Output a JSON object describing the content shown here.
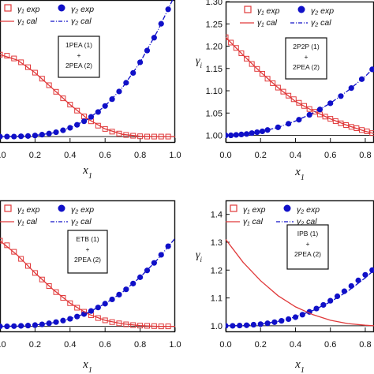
{
  "colors": {
    "gamma1": "#e0393a",
    "gamma2": "#1010c8",
    "axis": "#111111"
  },
  "chart_data": [
    {
      "type": "scatter",
      "panel": "top-left",
      "xlabel": "x1",
      "ylabel": "",
      "xlim": [
        0.0,
        1.0
      ],
      "ylim": [
        0.98,
        1.5
      ],
      "xticks": [
        "0.0",
        "0.2",
        "0.4",
        "0.6",
        "0.8",
        "1.0"
      ],
      "yticks": [],
      "system_label": [
        "1PEA (1)",
        "+",
        "2PEA (2)"
      ],
      "legend": {
        "exp1": "γ₁ exp",
        "exp2": "γ₂ exp",
        "cal1": "γ₁ cal",
        "cal2": "γ₂ cal"
      },
      "series": [
        {
          "name": "γ₁ exp",
          "x": [
            0.0,
            0.04,
            0.08,
            0.12,
            0.16,
            0.2,
            0.24,
            0.28,
            0.32,
            0.36,
            0.4,
            0.44,
            0.48,
            0.52,
            0.56,
            0.6,
            0.64,
            0.68,
            0.72,
            0.76,
            0.8,
            0.84,
            0.88,
            0.92,
            0.96
          ],
          "y": [
            1.3,
            1.296,
            1.286,
            1.272,
            1.254,
            1.234,
            1.212,
            1.188,
            1.164,
            1.14,
            1.117,
            1.095,
            1.074,
            1.056,
            1.04,
            1.028,
            1.018,
            1.011,
            1.006,
            1.003,
            1.001,
            1.0,
            1.0,
            1.0,
            1.0
          ]
        },
        {
          "name": "γ₂ exp",
          "x": [
            0.0,
            0.04,
            0.08,
            0.12,
            0.16,
            0.2,
            0.24,
            0.28,
            0.32,
            0.36,
            0.4,
            0.44,
            0.48,
            0.52,
            0.56,
            0.6,
            0.64,
            0.68,
            0.72,
            0.76,
            0.8,
            0.84,
            0.88,
            0.92,
            0.96
          ],
          "y": [
            1.0,
            1.0,
            1.0,
            1.001,
            1.002,
            1.004,
            1.007,
            1.011,
            1.016,
            1.023,
            1.032,
            1.043,
            1.056,
            1.072,
            1.09,
            1.112,
            1.137,
            1.165,
            1.197,
            1.233,
            1.272,
            1.315,
            1.362,
            1.413,
            1.466
          ]
        },
        {
          "name": "γ₁ cal",
          "x": [
            0.0,
            0.1,
            0.2,
            0.3,
            0.4,
            0.5,
            0.6,
            0.7,
            0.8,
            0.9,
            1.0
          ],
          "y": [
            1.3,
            1.28,
            1.234,
            1.176,
            1.117,
            1.065,
            1.028,
            1.008,
            1.001,
            1.0,
            1.0
          ]
        },
        {
          "name": "γ₂ cal",
          "x": [
            0.0,
            0.1,
            0.2,
            0.3,
            0.4,
            0.5,
            0.6,
            0.7,
            0.8,
            0.9,
            1.0
          ],
          "y": [
            1.0,
            1.001,
            1.004,
            1.013,
            1.032,
            1.063,
            1.112,
            1.18,
            1.272,
            1.387,
            1.52
          ]
        }
      ]
    },
    {
      "type": "scatter",
      "panel": "top-right",
      "xlabel": "x1",
      "ylabel": "γ",
      "xlim": [
        0.0,
        0.85
      ],
      "ylim": [
        0.985,
        1.3
      ],
      "xticks": [
        "0.0",
        "0.2",
        "0.4",
        "0.6",
        "0.8"
      ],
      "yticks": [
        "1.00",
        "1.05",
        "1.10",
        "1.15",
        "1.20",
        "1.25",
        "1.30"
      ],
      "system_label": [
        "2P2P (1)",
        "+",
        "2PEA (2)"
      ],
      "legend": {
        "exp1": "γ₁ exp",
        "exp2": "γ₂ exp",
        "cal1": "γ₁ cal",
        "cal2": "γ₂ cal"
      },
      "series": [
        {
          "name": "γ₁ exp",
          "x": [
            0.0,
            0.03,
            0.06,
            0.09,
            0.12,
            0.15,
            0.18,
            0.21,
            0.24,
            0.27,
            0.3,
            0.33,
            0.36,
            0.39,
            0.42,
            0.45,
            0.48,
            0.51,
            0.54,
            0.57,
            0.6,
            0.63,
            0.66,
            0.69,
            0.72,
            0.75,
            0.78,
            0.81,
            0.84
          ],
          "y": [
            1.22,
            1.208,
            1.196,
            1.184,
            1.172,
            1.16,
            1.149,
            1.138,
            1.127,
            1.117,
            1.107,
            1.098,
            1.089,
            1.081,
            1.073,
            1.066,
            1.059,
            1.053,
            1.047,
            1.042,
            1.037,
            1.032,
            1.027,
            1.023,
            1.019,
            1.016,
            1.012,
            1.009,
            1.005
          ]
        },
        {
          "name": "γ₂ exp",
          "x": [
            0.0,
            0.03,
            0.06,
            0.09,
            0.12,
            0.15,
            0.18,
            0.21,
            0.24,
            0.3,
            0.36,
            0.42,
            0.48,
            0.54,
            0.6,
            0.66,
            0.72,
            0.78,
            0.84
          ],
          "y": [
            1.0,
            1.0,
            1.001,
            1.002,
            1.003,
            1.005,
            1.007,
            1.009,
            1.012,
            1.018,
            1.026,
            1.035,
            1.046,
            1.058,
            1.072,
            1.088,
            1.106,
            1.126,
            1.148
          ]
        },
        {
          "name": "γ₁ cal",
          "x": [
            0.0,
            0.1,
            0.2,
            0.3,
            0.4,
            0.5,
            0.6,
            0.7,
            0.8,
            0.85
          ],
          "y": [
            1.22,
            1.18,
            1.142,
            1.107,
            1.076,
            1.055,
            1.037,
            1.022,
            1.009,
            1.004
          ]
        },
        {
          "name": "γ₂ cal",
          "x": [
            0.0,
            0.1,
            0.2,
            0.3,
            0.4,
            0.5,
            0.6,
            0.7,
            0.8,
            0.85
          ],
          "y": [
            1.0,
            1.002,
            1.008,
            1.018,
            1.032,
            1.05,
            1.072,
            1.1,
            1.132,
            1.152
          ]
        }
      ]
    },
    {
      "type": "scatter",
      "panel": "bottom-left",
      "xlabel": "x1",
      "ylabel": "",
      "xlim": [
        0.0,
        1.0
      ],
      "ylim": [
        0.98,
        1.5
      ],
      "xticks": [
        "0.0",
        "0.2",
        "0.4",
        "0.6",
        "0.8",
        "1.0"
      ],
      "yticks": [],
      "system_label": [
        "ETB (1)",
        "+",
        "2PEA (2)"
      ],
      "legend": {
        "exp1": "γ₁ exp",
        "exp2": "γ₂ exp",
        "cal1": "γ₁ cal",
        "cal2": "γ₂ cal"
      },
      "series": [
        {
          "name": "γ₁ exp",
          "x": [
            0.0,
            0.04,
            0.08,
            0.12,
            0.16,
            0.2,
            0.24,
            0.28,
            0.32,
            0.36,
            0.4,
            0.44,
            0.48,
            0.52,
            0.56,
            0.6,
            0.64,
            0.68,
            0.72,
            0.76,
            0.8,
            0.84,
            0.88,
            0.92,
            0.96
          ],
          "y": [
            1.34,
            1.322,
            1.296,
            1.268,
            1.24,
            1.212,
            1.186,
            1.16,
            1.136,
            1.113,
            1.092,
            1.074,
            1.058,
            1.044,
            1.033,
            1.024,
            1.017,
            1.012,
            1.008,
            1.005,
            1.003,
            1.002,
            1.001,
            1.0,
            1.0
          ]
        },
        {
          "name": "γ₂ exp",
          "x": [
            0.0,
            0.04,
            0.08,
            0.12,
            0.16,
            0.2,
            0.24,
            0.28,
            0.32,
            0.36,
            0.4,
            0.44,
            0.48,
            0.52,
            0.56,
            0.6,
            0.64,
            0.68,
            0.72,
            0.76,
            0.8,
            0.84,
            0.88,
            0.92,
            0.96
          ],
          "y": [
            1.0,
            1.0,
            1.001,
            1.002,
            1.003,
            1.005,
            1.008,
            1.012,
            1.017,
            1.023,
            1.03,
            1.039,
            1.049,
            1.061,
            1.075,
            1.09,
            1.107,
            1.126,
            1.147,
            1.17,
            1.195,
            1.222,
            1.252,
            1.284,
            1.318
          ]
        },
        {
          "name": "γ₁ cal",
          "x": [
            0.0,
            0.1,
            0.2,
            0.3,
            0.4,
            0.5,
            0.6,
            0.7,
            0.8,
            0.9,
            1.0
          ],
          "y": [
            1.34,
            1.282,
            1.212,
            1.148,
            1.092,
            1.05,
            1.024,
            1.01,
            1.003,
            1.0,
            1.0
          ]
        },
        {
          "name": "γ₂ cal",
          "x": [
            0.0,
            0.1,
            0.2,
            0.3,
            0.4,
            0.5,
            0.6,
            0.7,
            0.8,
            0.9,
            1.0
          ],
          "y": [
            1.0,
            1.001,
            1.005,
            1.014,
            1.03,
            1.054,
            1.09,
            1.136,
            1.195,
            1.266,
            1.35
          ]
        }
      ]
    },
    {
      "type": "scatter",
      "panel": "bottom-right",
      "xlabel": "x1",
      "ylabel": "γ",
      "xlim": [
        0.0,
        0.85
      ],
      "ylim": [
        0.98,
        1.45
      ],
      "xticks": [
        "0.0",
        "0.2",
        "0.4",
        "0.6",
        "0.8"
      ],
      "yticks": [
        "1.0",
        "1.1",
        "1.2",
        "1.3",
        "1.4"
      ],
      "system_label": [
        "IPB (1)",
        "+",
        "2PEA (2)"
      ],
      "legend": {
        "exp1": "γ₁ exp",
        "exp2": "γ₂ exp",
        "cal1": "γ₁ cal",
        "cal2": "γ₂ cal"
      },
      "series": [
        {
          "name": "γ₁ exp",
          "x": [],
          "y": []
        },
        {
          "name": "γ₂ exp",
          "x": [
            0.0,
            0.04,
            0.08,
            0.12,
            0.16,
            0.2,
            0.24,
            0.28,
            0.32,
            0.36,
            0.4,
            0.44,
            0.48,
            0.52,
            0.56,
            0.6,
            0.64,
            0.68,
            0.72,
            0.76,
            0.8,
            0.84
          ],
          "y": [
            1.0,
            1.0,
            1.001,
            1.002,
            1.004,
            1.006,
            1.009,
            1.013,
            1.018,
            1.024,
            1.031,
            1.04,
            1.05,
            1.062,
            1.075,
            1.09,
            1.106,
            1.124,
            1.143,
            1.163,
            1.183,
            1.2
          ]
        },
        {
          "name": "γ₁ cal",
          "x": [
            0.0,
            0.1,
            0.2,
            0.3,
            0.4,
            0.5,
            0.6,
            0.7,
            0.8,
            0.85
          ],
          "y": [
            1.31,
            1.228,
            1.162,
            1.108,
            1.068,
            1.04,
            1.02,
            1.008,
            1.002,
            1.0
          ]
        },
        {
          "name": "γ₂ cal",
          "x": [
            0.0,
            0.1,
            0.2,
            0.3,
            0.4,
            0.5,
            0.6,
            0.7,
            0.8,
            0.85
          ],
          "y": [
            1.0,
            1.001,
            1.006,
            1.016,
            1.032,
            1.055,
            1.086,
            1.124,
            1.172,
            1.2
          ]
        }
      ]
    }
  ]
}
